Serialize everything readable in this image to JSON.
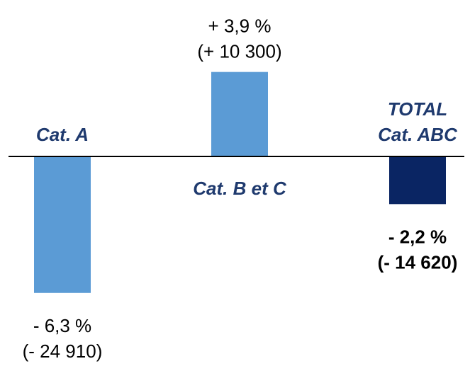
{
  "chart_data": {
    "type": "bar",
    "categories": [
      "Cat. A",
      "Cat. B et C",
      "TOTAL Cat. ABC"
    ],
    "category_label_lines": [
      [
        "Cat. A"
      ],
      [
        "Cat. B et C"
      ],
      [
        "TOTAL",
        "Cat. ABC"
      ]
    ],
    "values_pct": [
      -6.3,
      3.9,
      -2.2
    ],
    "values_abs": [
      -24910,
      10300,
      -14620
    ],
    "data_labels": [
      [
        "- 6,3 %",
        "(- 24 910)"
      ],
      [
        "+ 3,9 %",
        "(+ 10 300)"
      ],
      [
        "- 2,2 %",
        "(- 14 620)"
      ]
    ],
    "data_label_bold": [
      false,
      false,
      true
    ],
    "bar_colors": [
      "#5b9bd5",
      "#5b9bd5",
      "#0a2563"
    ],
    "title": "",
    "xlabel": "",
    "ylabel": "",
    "ylim": [
      -7,
      4.5
    ],
    "grid": false,
    "legend": "none"
  }
}
